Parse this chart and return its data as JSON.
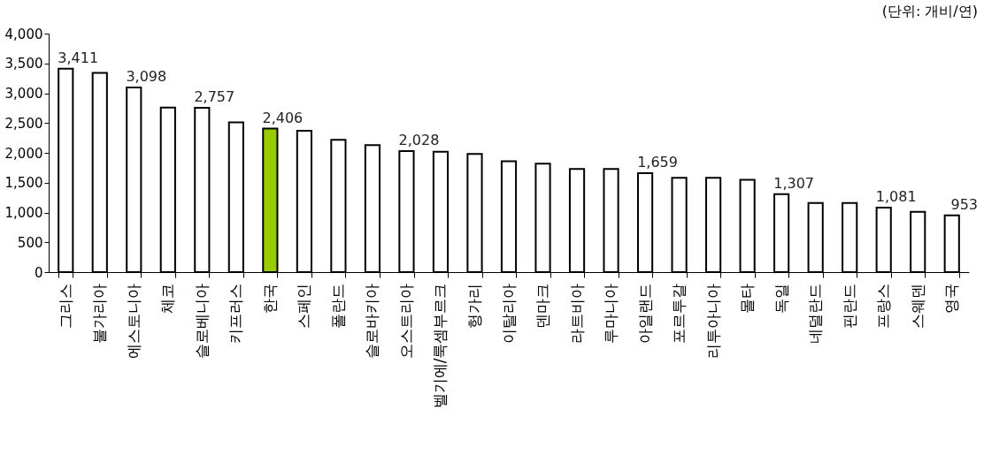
{
  "chart_data": {
    "type": "bar",
    "categories": [
      "그리스",
      "불가리아",
      "에스토니아",
      "체코",
      "슬로베니아",
      "키프러스",
      "한국",
      "스페인",
      "폴란드",
      "슬로바키아",
      "오스트리아",
      "벨기에/룩셈부르크",
      "헝가리",
      "이탈리아",
      "덴마크",
      "라트비아",
      "루마니아",
      "아일랜드",
      "포르투갈",
      "리투아니아",
      "몰타",
      "독일",
      "네덜란드",
      "핀란드",
      "프랑스",
      "스웨덴",
      "영국"
    ],
    "values": [
      3411,
      3340,
      3098,
      2760,
      2757,
      2510,
      2406,
      2370,
      2220,
      2130,
      2028,
      2020,
      1980,
      1860,
      1820,
      1730,
      1730,
      1659,
      1580,
      1580,
      1550,
      1307,
      1160,
      1160,
      1081,
      1010,
      953
    ],
    "value_labels": [
      "3,411",
      null,
      "3,098",
      null,
      "2,757",
      null,
      "2,406",
      null,
      null,
      null,
      "2,028",
      null,
      null,
      null,
      null,
      null,
      null,
      "1,659",
      null,
      null,
      null,
      "1,307",
      null,
      null,
      "1,081",
      null,
      "953"
    ],
    "colors": [
      "#ffffff",
      "#ffffff",
      "#ffffff",
      "#ffffff",
      "#ffffff",
      "#ffffff",
      "#99cc00",
      "#ffffff",
      "#ffffff",
      "#ffffff",
      "#ffffff",
      "#ffffff",
      "#ffffff",
      "#ffffff",
      "#ffffff",
      "#ffffff",
      "#ffffff",
      "#ffffff",
      "#ffffff",
      "#ffffff",
      "#ffffff",
      "#ffffff",
      "#ffffff",
      "#ffffff",
      "#ffffff",
      "#ffffff",
      "#ffffff"
    ],
    "ylim": [
      0,
      4000
    ],
    "yticks": [
      0,
      500,
      {
        "value": 1000,
        "label": "1,000"
      },
      {
        "value": 1500,
        "label": "1,500"
      },
      {
        "value": 2000,
        "label": "2,000"
      },
      {
        "value": 2500,
        "label": "2,500"
      },
      {
        "value": 3000,
        "label": "3,000"
      },
      {
        "value": 3500,
        "label": "3,500"
      },
      {
        "value": 4000,
        "label": "4,000"
      }
    ],
    "annotations": [
      "(단위: 개비/연)"
    ],
    "grid": false,
    "legend": false
  }
}
